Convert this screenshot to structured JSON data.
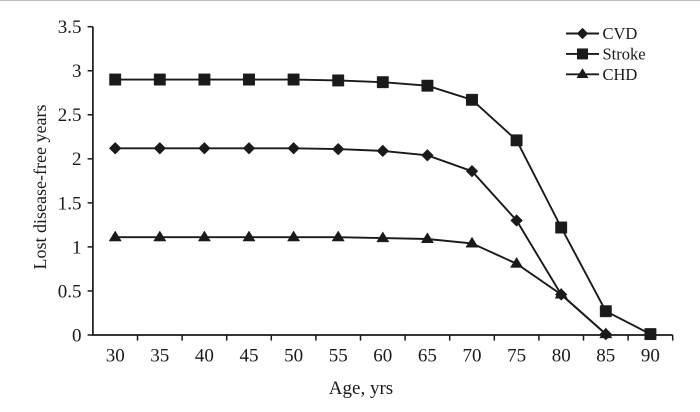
{
  "figure": {
    "background": "#ffffff",
    "top_edge_color": "#bdbdbd",
    "ink_color": "#1a1a1a"
  },
  "chart_data": {
    "type": "line",
    "title": "",
    "xlabel": "Age, yrs",
    "ylabel": "Lost disease-free years",
    "x_categories": [
      30,
      35,
      40,
      45,
      50,
      55,
      60,
      65,
      70,
      75,
      80,
      85,
      90
    ],
    "ylim": [
      0,
      3.5
    ],
    "y_ticks": [
      0,
      0.5,
      1,
      1.5,
      2,
      2.5,
      3,
      3.5
    ],
    "y_tick_labels": [
      "0",
      "0.5",
      "1",
      "1.5",
      "2",
      "2.5",
      "3",
      "3.5"
    ],
    "grid": false,
    "legend_position": "top-right",
    "legend_border": false,
    "line_color": "#1a1a1a",
    "series": [
      {
        "name": "CVD",
        "marker": "diamond",
        "values": [
          2.12,
          2.12,
          2.12,
          2.12,
          2.12,
          2.11,
          2.09,
          2.04,
          1.86,
          1.3,
          0.46,
          0.01,
          null
        ]
      },
      {
        "name": "Stroke",
        "marker": "square",
        "values": [
          2.9,
          2.9,
          2.9,
          2.9,
          2.9,
          2.89,
          2.87,
          2.83,
          2.67,
          2.21,
          1.22,
          0.27,
          0.01
        ]
      },
      {
        "name": "CHD",
        "marker": "triangle",
        "values": [
          1.11,
          1.11,
          1.11,
          1.11,
          1.11,
          1.11,
          1.1,
          1.09,
          1.04,
          0.81,
          0.46,
          0.01,
          null
        ]
      }
    ]
  }
}
